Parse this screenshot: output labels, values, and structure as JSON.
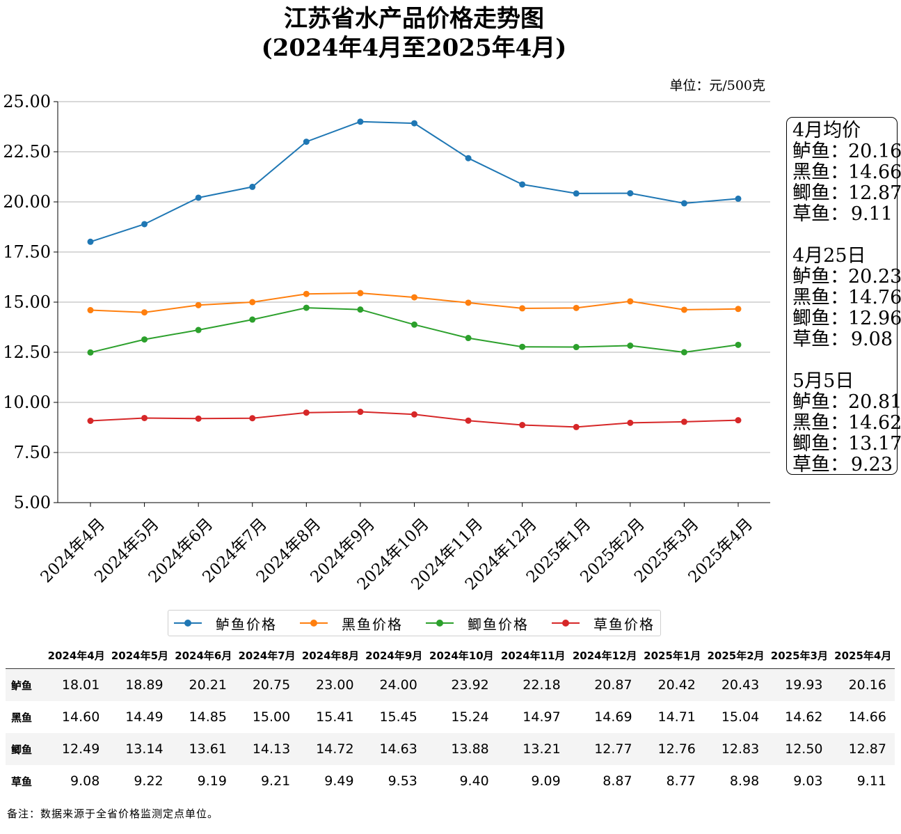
{
  "title_line1": "江苏省水产品价格走势图",
  "title_line2": "(2024年4月至2025年4月)",
  "unit_label": "单位：元/500克",
  "chart_data": {
    "type": "line",
    "title": "江苏省水产品价格走势图 (2024年4月至2025年4月)",
    "categories": [
      "2024年4月",
      "2024年5月",
      "2024年6月",
      "2024年7月",
      "2024年8月",
      "2024年9月",
      "2024年10月",
      "2024年11月",
      "2024年12月",
      "2025年1月",
      "2025年2月",
      "2025年3月",
      "2025年4月"
    ],
    "ylim": [
      5.0,
      25.0
    ],
    "yticks": [
      "5.00",
      "7.50",
      "10.00",
      "12.50",
      "15.00",
      "17.50",
      "20.00",
      "22.50",
      "25.00"
    ],
    "ytick_values": [
      5,
      7.5,
      10,
      12.5,
      15,
      17.5,
      20,
      22.5,
      25
    ],
    "grid": "horizontal",
    "legend_position": "bottom-center",
    "series": [
      {
        "name": "鲈鱼价格",
        "color": "#1f77b4",
        "values": [
          18.01,
          18.89,
          20.21,
          20.75,
          23.0,
          24.0,
          23.92,
          22.18,
          20.87,
          20.42,
          20.43,
          19.93,
          20.16
        ]
      },
      {
        "name": "黑鱼价格",
        "color": "#ff7f0e",
        "values": [
          14.6,
          14.49,
          14.85,
          15.0,
          15.41,
          15.45,
          15.24,
          14.97,
          14.69,
          14.71,
          15.04,
          14.62,
          14.66
        ]
      },
      {
        "name": "鲫鱼价格",
        "color": "#2ca02c",
        "values": [
          12.49,
          13.14,
          13.61,
          14.13,
          14.72,
          14.63,
          13.88,
          13.21,
          12.77,
          12.76,
          12.83,
          12.5,
          12.87
        ]
      },
      {
        "name": "草鱼价格",
        "color": "#d62728",
        "values": [
          9.08,
          9.22,
          9.19,
          9.21,
          9.49,
          9.53,
          9.4,
          9.09,
          8.87,
          8.77,
          8.98,
          9.03,
          9.11
        ]
      }
    ]
  },
  "annotation": {
    "groups": [
      {
        "title": "4月均价",
        "rows": [
          {
            "name": "鲈鱼：",
            "value": "20.16"
          },
          {
            "name": "黑鱼：",
            "value": "14.66"
          },
          {
            "name": "鲫鱼：",
            "value": "12.87"
          },
          {
            "name": "草鱼：",
            "value": "9.11"
          }
        ]
      },
      {
        "title": "4月25日",
        "rows": [
          {
            "name": "鲈鱼：",
            "value": "20.23"
          },
          {
            "name": "黑鱼：",
            "value": "14.76"
          },
          {
            "name": "鲫鱼：",
            "value": "12.96"
          },
          {
            "name": "草鱼：",
            "value": "9.08"
          }
        ]
      },
      {
        "title": "5月5日",
        "rows": [
          {
            "name": "鲈鱼：",
            "value": "20.81"
          },
          {
            "name": "黑鱼：",
            "value": "14.62"
          },
          {
            "name": "鲫鱼：",
            "value": "13.17"
          },
          {
            "name": "草鱼：",
            "value": "9.23"
          }
        ]
      }
    ]
  },
  "table": {
    "headers": [
      "2024年4月",
      "2024年5月",
      "2024年6月",
      "2024年7月",
      "2024年8月",
      "2024年9月",
      "2024年10月",
      "2024年11月",
      "2024年12月",
      "2025年1月",
      "2025年2月",
      "2025年3月",
      "2025年4月"
    ],
    "rows": [
      {
        "name": "鲈鱼",
        "values": [
          "18.01",
          "18.89",
          "20.21",
          "20.75",
          "23.00",
          "24.00",
          "23.92",
          "22.18",
          "20.87",
          "20.42",
          "20.43",
          "19.93",
          "20.16"
        ]
      },
      {
        "name": "黑鱼",
        "values": [
          "14.60",
          "14.49",
          "14.85",
          "15.00",
          "15.41",
          "15.45",
          "15.24",
          "14.97",
          "14.69",
          "14.71",
          "15.04",
          "14.62",
          "14.66"
        ]
      },
      {
        "name": "鲫鱼",
        "values": [
          "12.49",
          "13.14",
          "13.61",
          "14.13",
          "14.72",
          "14.63",
          "13.88",
          "13.21",
          "12.77",
          "12.76",
          "12.83",
          "12.50",
          "12.87"
        ]
      },
      {
        "name": "草鱼",
        "values": [
          "9.08",
          "9.22",
          "9.19",
          "9.21",
          "9.49",
          "9.53",
          "9.40",
          "9.09",
          "8.87",
          "8.77",
          "8.98",
          "9.03",
          "9.11"
        ]
      }
    ]
  },
  "note": "备注：数据来源于全省价格监测定点单位。"
}
